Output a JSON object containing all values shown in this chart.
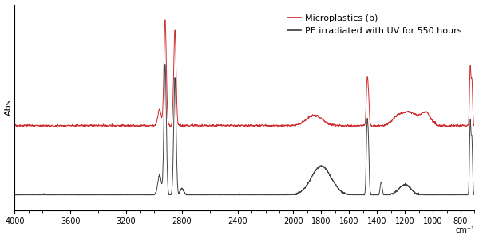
{
  "title": "",
  "xlabel": "cm⁻¹",
  "ylabel": "Abs",
  "xlim": [
    4000,
    700
  ],
  "background_color": "#ffffff",
  "red_color": "#cc2222",
  "black_color": "#3a3a3a",
  "legend_red": "Microplastics (b)",
  "legend_black": "PE irradiated with UV for 550 hours",
  "xticks": [
    4000,
    3600,
    3200,
    2800,
    2400,
    2000,
    1800,
    1600,
    1400,
    1200,
    1000,
    800
  ],
  "red_baseline": 0.42,
  "black_baseline": 0.06,
  "red_scale": 0.55,
  "black_scale": 0.68
}
